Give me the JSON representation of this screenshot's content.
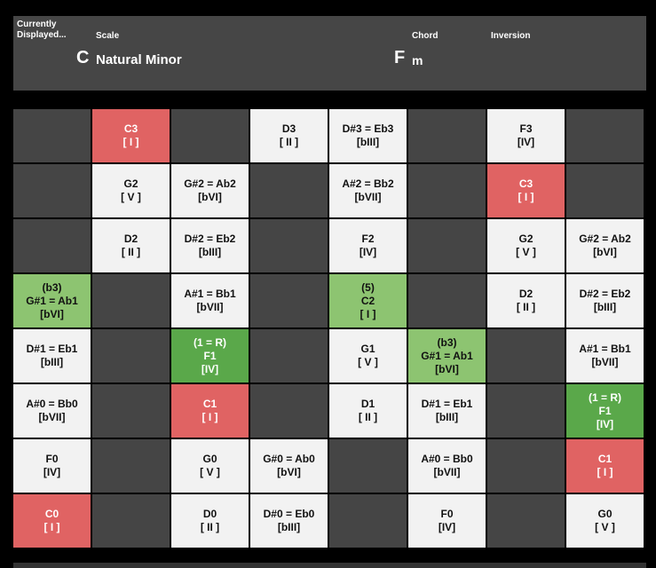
{
  "header": {
    "currently_label": "Currently\nDisplayed...",
    "scale_label": "Scale",
    "chord_label": "Chord",
    "inversion_label": "Inversion",
    "root_note": "C",
    "scale_name": "Natural Minor",
    "chord_root": "F",
    "chord_quality": "m",
    "inversion_value": ""
  },
  "colors": {
    "background": "#000000",
    "header_bg": "#464646",
    "empty_cell": "#454545",
    "scale_note_cell": "#f2f2f2",
    "tonic_cell": "#e06363",
    "chord_tone_cell": "#8dc471",
    "chord_root_cell": "#5aa84a"
  },
  "grid": [
    [
      {
        "style": "empty",
        "lines": []
      },
      {
        "style": "red",
        "lines": [
          "C3",
          "[ I ]"
        ]
      },
      {
        "style": "empty",
        "lines": []
      },
      {
        "style": "white",
        "lines": [
          "D3",
          "[ II ]"
        ]
      },
      {
        "style": "white",
        "lines": [
          "D#3 = Eb3",
          "[bIII]"
        ]
      },
      {
        "style": "empty",
        "lines": []
      },
      {
        "style": "white",
        "lines": [
          "F3",
          "[IV]"
        ]
      },
      {
        "style": "empty",
        "lines": []
      }
    ],
    [
      {
        "style": "empty",
        "lines": []
      },
      {
        "style": "white",
        "lines": [
          "G2",
          "[ V ]"
        ]
      },
      {
        "style": "white",
        "lines": [
          "G#2 = Ab2",
          "[bVI]"
        ]
      },
      {
        "style": "empty",
        "lines": []
      },
      {
        "style": "white",
        "lines": [
          "A#2 = Bb2",
          "[bVII]"
        ]
      },
      {
        "style": "empty",
        "lines": []
      },
      {
        "style": "red",
        "lines": [
          "C3",
          "[ I ]"
        ]
      },
      {
        "style": "empty",
        "lines": []
      }
    ],
    [
      {
        "style": "empty",
        "lines": []
      },
      {
        "style": "white",
        "lines": [
          "D2",
          "[ II ]"
        ]
      },
      {
        "style": "white",
        "lines": [
          "D#2 = Eb2",
          "[bIII]"
        ]
      },
      {
        "style": "empty",
        "lines": []
      },
      {
        "style": "white",
        "lines": [
          "F2",
          "[IV]"
        ]
      },
      {
        "style": "empty",
        "lines": []
      },
      {
        "style": "white",
        "lines": [
          "G2",
          "[ V ]"
        ]
      },
      {
        "style": "white",
        "lines": [
          "G#2 = Ab2",
          "[bVI]"
        ]
      }
    ],
    [
      {
        "style": "lgreen",
        "lines": [
          "(b3)",
          "G#1 = Ab1",
          "[bVI]"
        ]
      },
      {
        "style": "empty",
        "lines": []
      },
      {
        "style": "white",
        "lines": [
          "A#1 = Bb1",
          "[bVII]"
        ]
      },
      {
        "style": "empty",
        "lines": []
      },
      {
        "style": "lgreen",
        "lines": [
          "(5)",
          "C2",
          "[ I ]"
        ]
      },
      {
        "style": "empty",
        "lines": []
      },
      {
        "style": "white",
        "lines": [
          "D2",
          "[ II ]"
        ]
      },
      {
        "style": "white",
        "lines": [
          "D#2 = Eb2",
          "[bIII]"
        ]
      }
    ],
    [
      {
        "style": "white",
        "lines": [
          "D#1 = Eb1",
          "[bIII]"
        ]
      },
      {
        "style": "empty",
        "lines": []
      },
      {
        "style": "dgreen",
        "lines": [
          "(1 = R)",
          "F1",
          "[IV]"
        ]
      },
      {
        "style": "empty",
        "lines": []
      },
      {
        "style": "white",
        "lines": [
          "G1",
          "[ V ]"
        ]
      },
      {
        "style": "lgreen",
        "lines": [
          "(b3)",
          "G#1 = Ab1",
          "[bVI]"
        ]
      },
      {
        "style": "empty",
        "lines": []
      },
      {
        "style": "white",
        "lines": [
          "A#1 = Bb1",
          "[bVII]"
        ]
      }
    ],
    [
      {
        "style": "white",
        "lines": [
          "A#0 = Bb0",
          "[bVII]"
        ]
      },
      {
        "style": "empty",
        "lines": []
      },
      {
        "style": "red",
        "lines": [
          "C1",
          "[ I ]"
        ]
      },
      {
        "style": "empty",
        "lines": []
      },
      {
        "style": "white",
        "lines": [
          "D1",
          "[ II ]"
        ]
      },
      {
        "style": "white",
        "lines": [
          "D#1 = Eb1",
          "[bIII]"
        ]
      },
      {
        "style": "empty",
        "lines": []
      },
      {
        "style": "dgreen",
        "lines": [
          "(1 = R)",
          "F1",
          "[IV]"
        ]
      }
    ],
    [
      {
        "style": "white",
        "lines": [
          "F0",
          "[IV]"
        ]
      },
      {
        "style": "empty",
        "lines": []
      },
      {
        "style": "white",
        "lines": [
          "G0",
          "[ V ]"
        ]
      },
      {
        "style": "white",
        "lines": [
          "G#0 = Ab0",
          "[bVI]"
        ]
      },
      {
        "style": "empty",
        "lines": []
      },
      {
        "style": "white",
        "lines": [
          "A#0 = Bb0",
          "[bVII]"
        ]
      },
      {
        "style": "empty",
        "lines": []
      },
      {
        "style": "red",
        "lines": [
          "C1",
          "[ I ]"
        ]
      }
    ],
    [
      {
        "style": "red",
        "lines": [
          "C0",
          "[ I ]"
        ]
      },
      {
        "style": "empty",
        "lines": []
      },
      {
        "style": "white",
        "lines": [
          "D0",
          "[ II ]"
        ]
      },
      {
        "style": "white",
        "lines": [
          "D#0 = Eb0",
          "[bIII]"
        ]
      },
      {
        "style": "empty",
        "lines": []
      },
      {
        "style": "white",
        "lines": [
          "F0",
          "[IV]"
        ]
      },
      {
        "style": "empty",
        "lines": []
      },
      {
        "style": "white",
        "lines": [
          "G0",
          "[ V ]"
        ]
      }
    ]
  ]
}
